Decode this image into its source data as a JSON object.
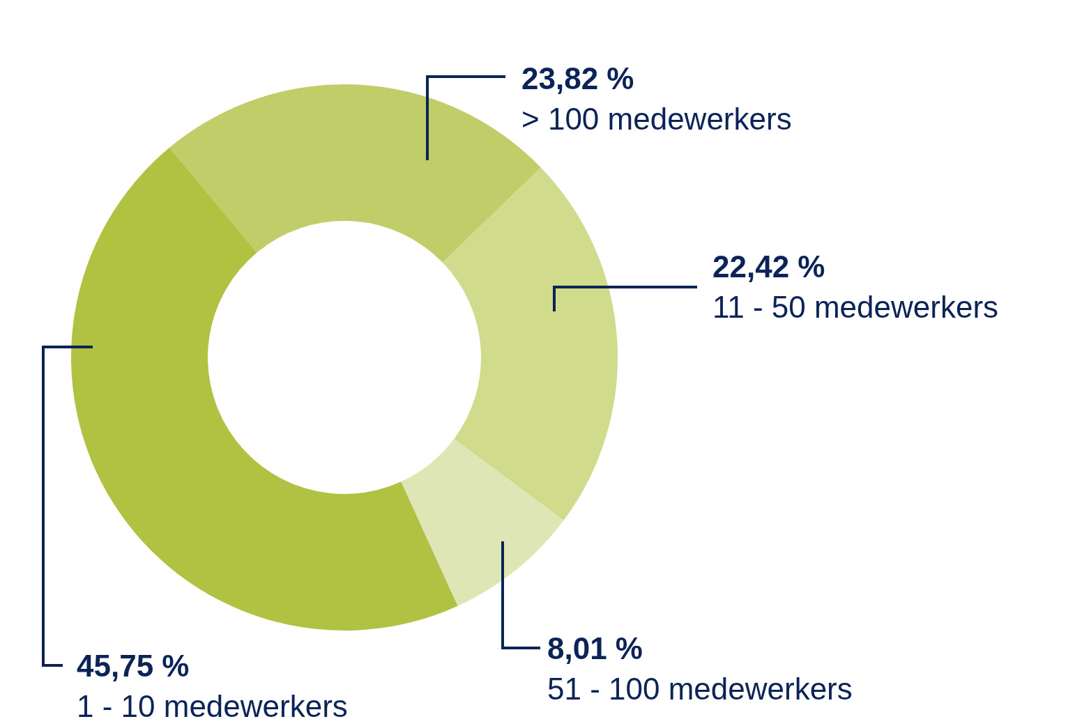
{
  "chart_data": {
    "type": "donut",
    "categories": [
      "> 100 medewerkers",
      "11 - 50 medewerkers",
      "51 - 100 medewerkers",
      "1 - 10 medewerkers"
    ],
    "values": [
      23.82,
      22.42,
      8.01,
      45.75
    ],
    "value_labels": [
      "23,82 %",
      "22,42 %",
      "8,01 %",
      "45,75 %"
    ],
    "colors": [
      "#c1cd69",
      "#d0db8c",
      "#dfe6b5",
      "#b1c142"
    ],
    "legend": false
  }
}
